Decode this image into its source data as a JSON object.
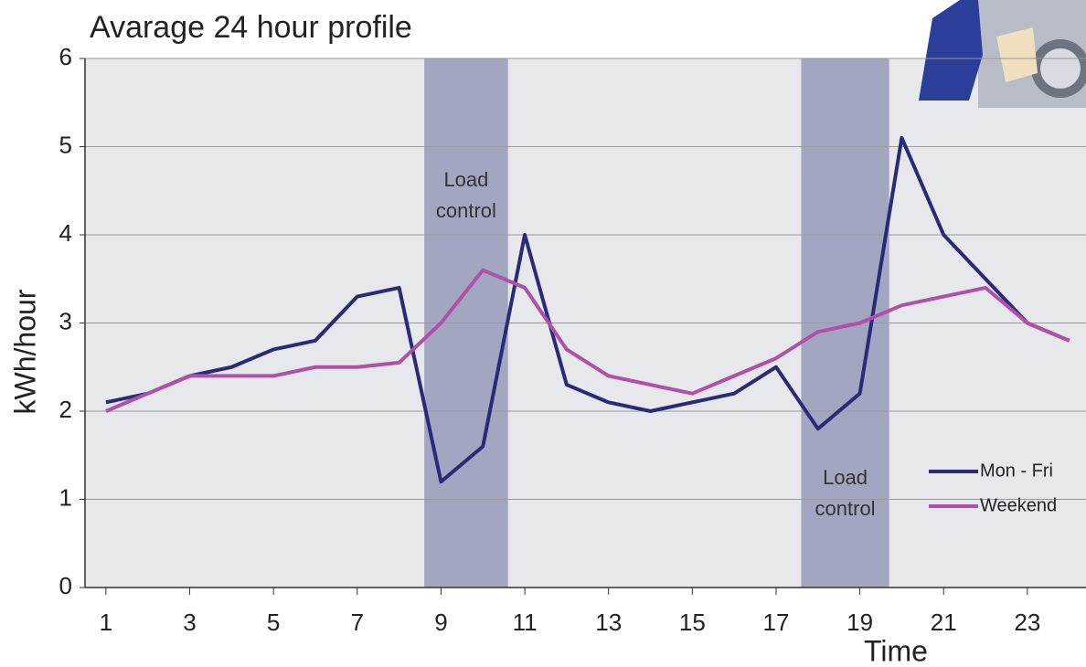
{
  "chart_data": {
    "type": "line",
    "title": "Avarage 24 hour profile",
    "x_label": "Time",
    "y_label": "kWh/hour",
    "x": [
      1,
      2,
      3,
      4,
      5,
      6,
      7,
      8,
      9,
      10,
      11,
      12,
      13,
      14,
      15,
      16,
      17,
      18,
      19,
      20,
      21,
      22,
      23,
      24
    ],
    "series": [
      {
        "name": "Mon - Fri",
        "color": "#2b2a78",
        "values": [
          2.1,
          2.2,
          2.4,
          2.5,
          2.7,
          2.8,
          3.3,
          3.4,
          1.2,
          1.6,
          4.0,
          2.3,
          2.1,
          2.0,
          2.1,
          2.2,
          2.5,
          1.8,
          2.2,
          5.1,
          4.0,
          3.5,
          3.0,
          2.8
        ]
      },
      {
        "name": "Weekend",
        "color": "#b050a8",
        "values": [
          2.0,
          2.2,
          2.4,
          2.4,
          2.4,
          2.5,
          2.5,
          2.55,
          3.0,
          3.6,
          3.4,
          2.7,
          2.4,
          2.3,
          2.2,
          2.4,
          2.6,
          2.9,
          3.0,
          3.2,
          3.3,
          3.4,
          3.0,
          2.8
        ]
      }
    ],
    "bands": [
      {
        "x": [
          8.6,
          10.6
        ],
        "label": [
          "Load",
          "control"
        ]
      },
      {
        "x": [
          17.6,
          19.7
        ],
        "label": [
          "Load",
          "control"
        ]
      }
    ],
    "band_color": "#a3a6c0",
    "xlim": [
      0.5,
      24.4
    ],
    "xticks": [
      1,
      3,
      5,
      7,
      9,
      11,
      13,
      15,
      17,
      19,
      21,
      23
    ],
    "ylim": [
      0,
      6
    ],
    "yticks": [
      0,
      1,
      2,
      3,
      4,
      5,
      6
    ],
    "grid": true,
    "legend": "lower right"
  }
}
